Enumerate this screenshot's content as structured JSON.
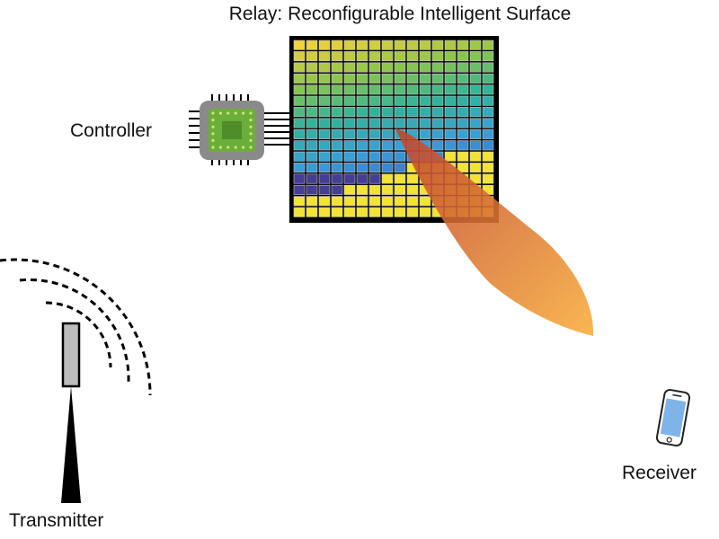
{
  "labels": {
    "title": "Relay: Reconfigurable Intelligent Surface",
    "controller": "Controller",
    "transmitter": "Transmitter",
    "receiver": "Receiver"
  },
  "surface": {
    "rows": 16,
    "cols": 16,
    "gradient": [
      "#f3d13a",
      "#8cc64a",
      "#2fb49a",
      "#3aa0d8",
      "#3f62c4",
      "#3b3f98"
    ],
    "lower_fill": "#443e95",
    "yellow_fill": "#f3e334",
    "grid_line": "#c9c9c9"
  },
  "colors": {
    "beam_inner": "#c0432e",
    "beam_outer": "#f8ad3a",
    "chip_body": "#8a8a8a",
    "chip_die": "#6cae3a",
    "chip_dots": "#cde47a",
    "tower": "#000000",
    "antenna": "#bdbdbd",
    "phone_screen": "#7fb4e8"
  },
  "icons": {
    "controller": "chip-icon",
    "transmitter": "tower-icon",
    "receiver": "phone-icon",
    "waves": "wifi-waves-icon"
  }
}
